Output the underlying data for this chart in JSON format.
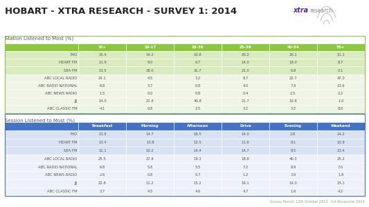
{
  "title": "HOBART - XTRA RESEARCH - SURVEY 1: 2014",
  "title_color": "#222222",
  "background_color": "#ffffff",
  "section1_label": "Station Listened to Most (%)",
  "section2_label": "Session Listened to Most (%)",
  "footer": "Survey Period: 13th October 2014 - 1st November 2014",
  "table1_headers": [
    "10+",
    "10-17",
    "18-39",
    "25-39",
    "40-54",
    "55+"
  ],
  "table1_rows": [
    [
      "7HO",
      "15.4",
      "14.2",
      "10.8",
      "20.2",
      "20.1",
      "11.1"
    ],
    [
      "HEART FM",
      "11.9",
      "9.0",
      "6.7",
      "14.0",
      "18.0",
      "8.7"
    ],
    [
      "SEA FM",
      "13.5",
      "38.0",
      "31.7",
      "21.0",
      "6.8",
      "0.1"
    ],
    [
      "ABC LOCAL RADIO",
      "24.1",
      "4.5",
      "3.2",
      "8.7",
      "22.7",
      "47.0"
    ],
    [
      "ABC RADIO NATIONAL",
      "6.8",
      "3.7",
      "0.8",
      "4.0",
      "7.9",
      "13.6"
    ],
    [
      "ABC NEWS RADIO",
      "1.5",
      "0.0",
      "0.8",
      "0.4",
      "2.5",
      "2.2"
    ],
    [
      "JJJ",
      "14.0",
      "21.8",
      "40.8",
      "21.7",
      "10.8",
      "1.0"
    ],
    [
      "ABC CLASSIC FM",
      "4.1",
      "0.8",
      "2.5",
      "3.2",
      "3.2",
      "8.8"
    ]
  ],
  "table1_header_bg": "#8dc63f",
  "table1_header_text": "#ffffff",
  "table1_highlight_rows": [
    0,
    1,
    2
  ],
  "table1_highlight_bg": "#daebbf",
  "table1_normal_bg": "#eef5e6",
  "table1_border_color": "#8dc63f",
  "table2_headers": [
    "Breakfast",
    "Morning",
    "Afternoon",
    "Drive",
    "Evening",
    "Weekend"
  ],
  "table2_rows": [
    [
      "7HO",
      "13.9",
      "14.7",
      "16.5",
      "14.0",
      "2.8",
      "14.2"
    ],
    [
      "HEART FM",
      "13.4",
      "13.8",
      "12.5",
      "11.6",
      "8.1",
      "10.8"
    ],
    [
      "SEA FM",
      "12.1",
      "10.2",
      "14.4",
      "14.7",
      "8.5",
      "13.4"
    ],
    [
      "ABC LOCAL RADIO",
      "25.5",
      "27.8",
      "19.3",
      "18.8",
      "40.3",
      "25.2"
    ],
    [
      "ABC RADIO NATIONAL",
      "6.8",
      "5.8",
      "5.5",
      "7.2",
      "8.9",
      "7.0"
    ],
    [
      "ABC NEWS RADIO",
      "2.6",
      "0.8",
      "0.7",
      "1.2",
      "3.9",
      "1.8"
    ],
    [
      "JJJ",
      "22.8",
      "11.2",
      "15.2",
      "19.1",
      "14.0",
      "15.1"
    ],
    [
      "ABC CLASSIC FM",
      "3.7",
      "4.5",
      "4.6",
      "4.7",
      "1.6",
      "4.2"
    ]
  ],
  "table2_header_bg": "#4472c4",
  "table2_header_text": "#ffffff",
  "table2_highlight_rows": [
    0,
    1,
    2
  ],
  "table2_highlight_bg": "#d9e2f3",
  "table2_normal_bg": "#edf1f9",
  "table2_border_color": "#4472c4",
  "logo_xtra_color": "#5b2c8e",
  "logo_research_color": "#888888"
}
